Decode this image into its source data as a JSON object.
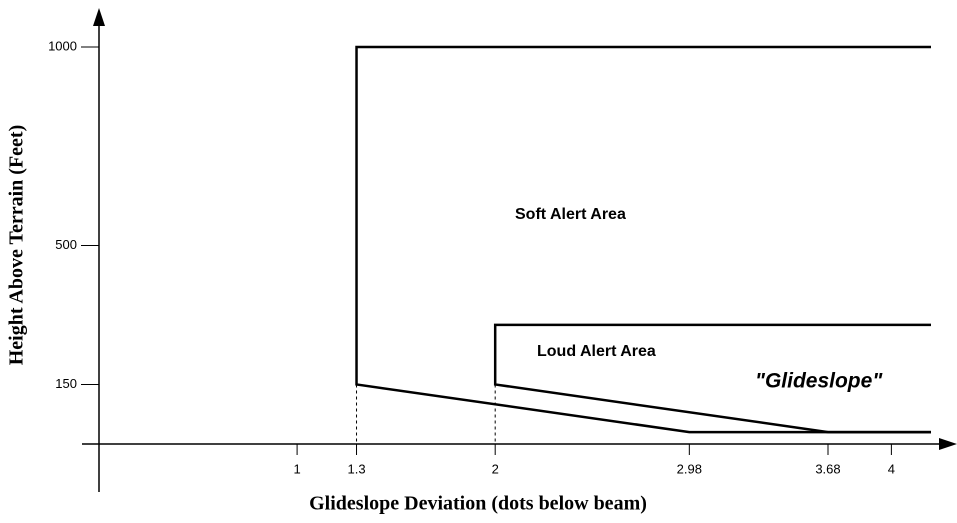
{
  "chart_data": {
    "type": "line",
    "xlabel": "Glideslope Deviation (dots below beam)",
    "ylabel": "Height Above Terrain (Feet)",
    "xlim": [
      0,
      4.2
    ],
    "ylim": [
      0,
      1000
    ],
    "xticks": [
      1,
      1.3,
      2,
      2.98,
      3.68,
      4
    ],
    "yticks": [
      150,
      500,
      1000
    ],
    "series": [
      {
        "name": "Soft Alert Area",
        "color": "#000000",
        "x": [
          4.2,
          1.3,
          1.3,
          2.98,
          4.2
        ],
        "values": [
          1000,
          1000,
          150,
          30,
          30
        ]
      },
      {
        "name": "Loud Alert Area",
        "color": "#000000",
        "x": [
          4.2,
          2,
          2,
          3.68,
          4.2
        ],
        "values": [
          300,
          300,
          150,
          30,
          30
        ]
      }
    ],
    "annotations": [
      "\"Glideslope\""
    ]
  }
}
